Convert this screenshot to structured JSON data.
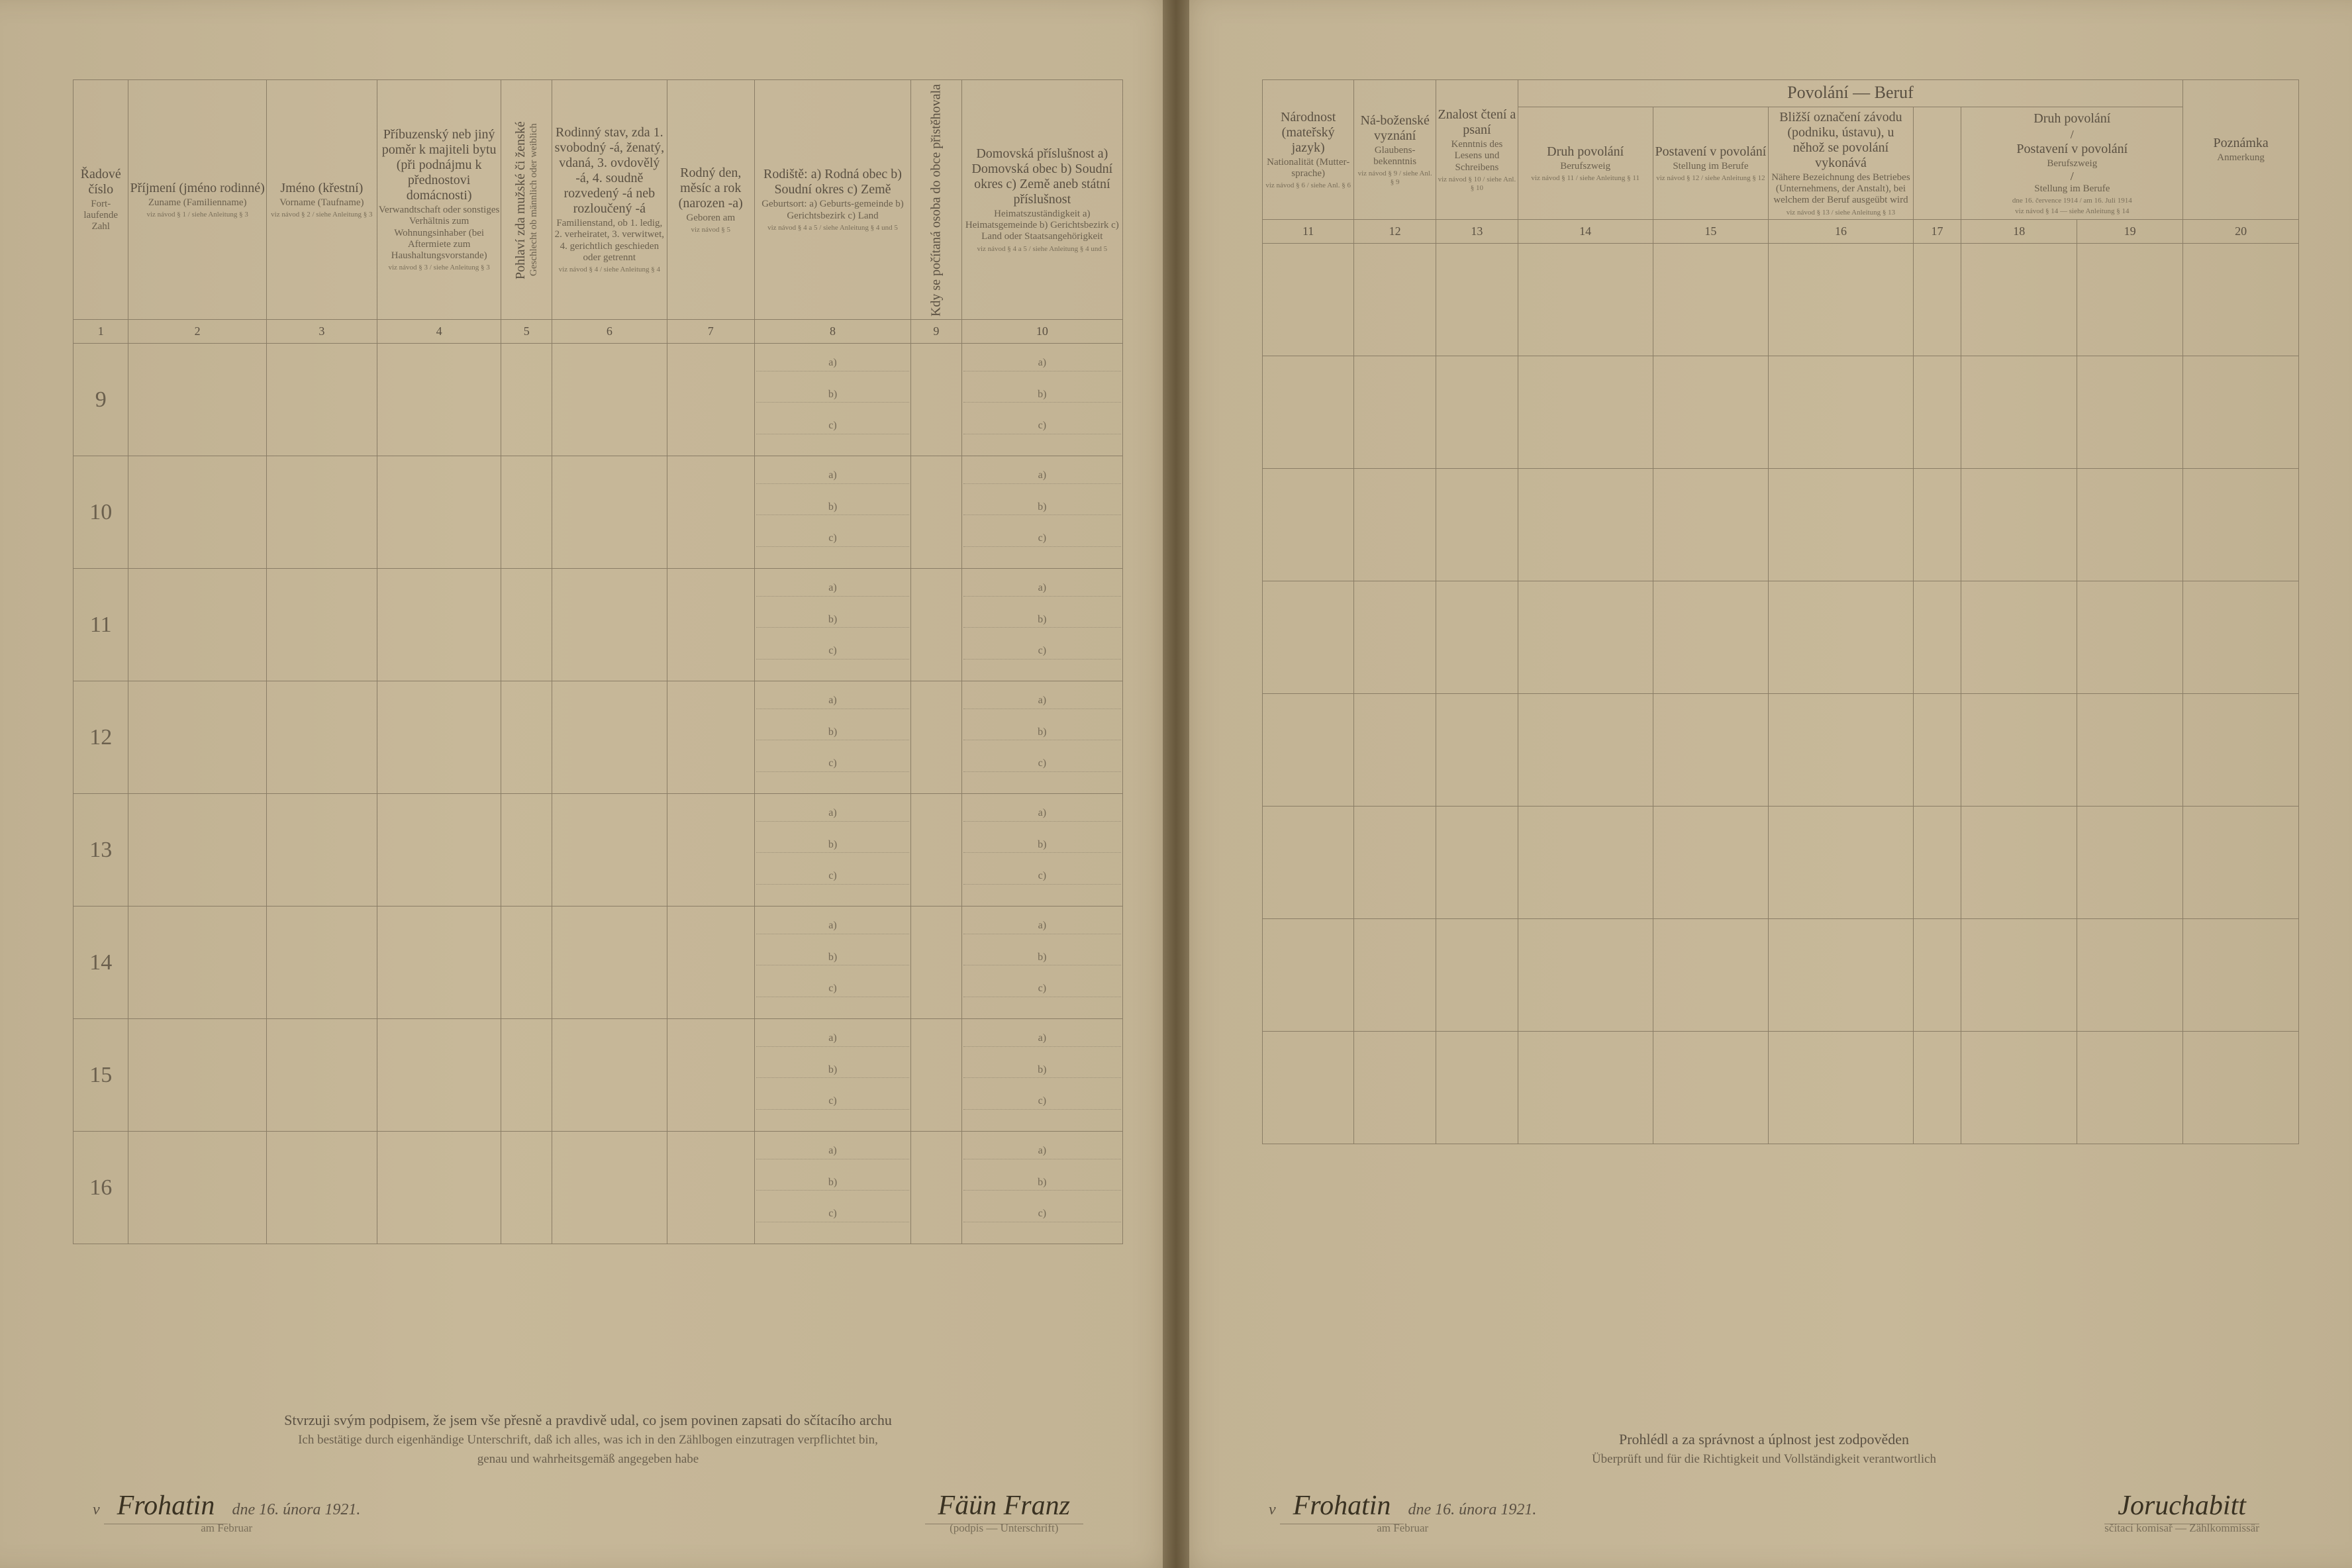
{
  "left": {
    "columns": [
      {
        "num": "1",
        "cz": "Řadové číslo",
        "de": "Fort-laufende Zahl",
        "w": 60
      },
      {
        "num": "2",
        "cz": "Příjmení (jméno rodinné)",
        "de": "Zuname (Familienname)",
        "note": "viz návod § 1 / siehe Anleitung § 3",
        "w": 150
      },
      {
        "num": "3",
        "cz": "Jméno (křestní)",
        "de": "Vorname (Taufname)",
        "note": "viz návod § 2 / siehe Anleitung § 3",
        "w": 120
      },
      {
        "num": "4",
        "cz": "Příbuzenský neb jiný poměr k majiteli bytu (při podnájmu k přednostovi domácnosti)",
        "de": "Verwandtschaft oder sonstiges Verhältnis zum Wohnungsinhaber (bei Aftermiete zum Haushaltungsvorstande)",
        "note": "viz návod § 3 / siehe Anleitung § 3",
        "w": 135
      },
      {
        "num": "5",
        "cz": "Pohlaví zda mužské či ženské",
        "de": "Geschlecht ob männlich oder weiblich",
        "w": 55
      },
      {
        "num": "6",
        "cz": "Rodinný stav, zda 1. svobodný -á, ženatý, vdaná, 3. ovdovělý -á, 4. soudně rozvedený -á neb rozloučený -á",
        "de": "Familienstand, ob 1. ledig, 2. verheiratet, 3. verwitwet, 4. gerichtlich geschieden oder getrennt",
        "note": "viz návod § 4 / siehe Anleitung § 4",
        "w": 125
      },
      {
        "num": "7",
        "cz": "Rodný den, měsíc a rok (narozen -a)",
        "de": "Geboren am",
        "note": "viz návod § 5",
        "w": 95
      },
      {
        "num": "8",
        "cz": "Rodiště: a) Rodná obec b) Soudní okres c) Země",
        "de": "Geburtsort: a) Geburts-gemeinde b) Gerichtsbezirk c) Land",
        "note": "viz návod § 4 a 5 / siehe Anleitung § 4 und 5",
        "w": 170
      },
      {
        "num": "9",
        "cz": "Kdy se počítaná osoba do obce přistěhovala",
        "de": "",
        "w": 55
      },
      {
        "num": "10",
        "cz": "Domovská příslušnost a) Domovská obec b) Soudní okres c) Země aneb státní příslušnost",
        "de": "Heimatszuständigkeit a) Heimatsgemeinde b) Gerichtsbezirk c) Land oder Staatsangehörigkeit",
        "note": "viz návod § 4 a 5 / siehe Anleitung § 4 und 5",
        "w": 175
      }
    ],
    "rows": [
      "9",
      "10",
      "11",
      "12",
      "13",
      "14",
      "15",
      "16"
    ],
    "footer1": "Stvrzuji svým podpisem, že jsem vše přesně a pravdivě udal, co jsem povinen zapsati do sčítacího archu",
    "footer2": "Ich bestätige durch eigenhändige Unterschrift, daß ich alles, was ich in den Zählbogen einzutragen verpflichtet bin,",
    "footer3": "genau und wahrheitsgemäß angegeben habe",
    "sig_place": "Frohatin",
    "sig_date": "dne 16. února 1921.",
    "sig_date_de": "am      Februar",
    "sig_name": "Fäün Franz",
    "sig_sub": "(podpis — Unterschrift)"
  },
  "right": {
    "group_heading": "Povolání — Beruf",
    "columns": [
      {
        "num": "11",
        "cz": "Národnost (mateřský jazyk)",
        "de": "Nationalität (Mutter-sprache)",
        "note": "viz návod § 6 / siehe Anl. § 6",
        "w": 95
      },
      {
        "num": "12",
        "cz": "Ná-boženské vyznání",
        "de": "Glaubens-bekenntnis",
        "note": "viz návod § 9 / siehe Anl. § 9",
        "w": 85
      },
      {
        "num": "13",
        "cz": "Znalost čtení a psaní",
        "de": "Kenntnis des Lesens und Schreibens",
        "note": "viz návod § 10 / siehe Anl. § 10",
        "w": 85
      },
      {
        "num": "14",
        "cz": "Druh povolání",
        "de": "Berufszweig",
        "note": "viz návod § 11 / siehe Anleitung § 11",
        "w": 140
      },
      {
        "num": "15",
        "cz": "Postavení v povolání",
        "de": "Stellung im Berufe",
        "note": "viz návod § 12 / siehe Anleitung § 12",
        "w": 120
      },
      {
        "num": "16",
        "cz": "Bližší označení závodu (podniku, ústavu), u něhož se povolání vykonává",
        "de": "Nähere Bezeichnung des Betriebes (Unternehmens, der Anstalt), bei welchem der Beruf ausgeübt wird",
        "note": "viz návod § 13 / siehe Anleitung § 13",
        "w": 150
      },
      {
        "num": "17",
        "cz": "",
        "de": "",
        "w": 50
      },
      {
        "num": "18",
        "cz": "Druh povolání",
        "de": "Berufszweig",
        "w": 120
      },
      {
        "num": "19",
        "cz": "Postavení v povolání",
        "de": "Stellung im Berufe",
        "w": 110
      },
      {
        "num": "20",
        "cz": "Poznámka",
        "de": "Anmerkung",
        "w": 120
      }
    ],
    "sub_heading": "dne 16. července 1914 / am 16. Juli 1914",
    "sub_note": "viz návod § 14 — siehe Anleitung § 14",
    "footer1": "Prohlédl a za správnost a úplnost jest zodpověden",
    "footer2": "Überprüft und für die Richtigkeit und Vollständigkeit verantwortlich",
    "sig_place": "Frohatin",
    "sig_date": "dne 16. února 1921.",
    "sig_date_de": "am      Februar",
    "sig_name": "Joruchabitt",
    "sig_sub": "sčítací komisař — Zählkommissär"
  },
  "abc_labels": {
    "a": "a)",
    "b": "b)",
    "c": "c)"
  }
}
